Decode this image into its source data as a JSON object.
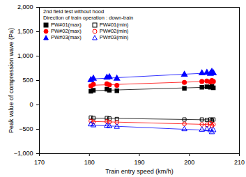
{
  "chart_data": {
    "type": "scatter",
    "title": "2nd field test without hood",
    "subtitle": "Direction of train operation : down-train",
    "x_label": "Train entry speed (km/h)",
    "y_label": "Peak value of compression wave (Pa)",
    "x": [
      180.3,
      180.8,
      183.5,
      184.0,
      185.5,
      199.0,
      202.5,
      203.5,
      204.2,
      204.5,
      204.8
    ],
    "series": [
      {
        "name": "PW#01(max)",
        "color": "#000000",
        "marker": "square",
        "values": [
          280,
          300,
          320,
          300,
          290,
          340,
          360,
          370,
          360,
          380,
          350
        ]
      },
      {
        "name": "PW#01(min)",
        "color": "#000000",
        "marker": "square-open",
        "values": [
          -260,
          -270,
          -270,
          -280,
          -290,
          -300,
          -300,
          -310,
          -300,
          -320,
          -300
        ]
      },
      {
        "name": "PW#02(max)",
        "color": "#ff0000",
        "marker": "circle",
        "values": [
          390,
          420,
          430,
          410,
          400,
          460,
          480,
          490,
          470,
          500,
          480
        ]
      },
      {
        "name": "PW#02(min)",
        "color": "#ff0000",
        "marker": "circle-open",
        "values": [
          -330,
          -350,
          -340,
          -350,
          -360,
          -390,
          -400,
          -410,
          -380,
          -420,
          -400
        ]
      },
      {
        "name": "PW#03(max)",
        "color": "#0000ff",
        "marker": "triangle",
        "values": [
          510,
          540,
          560,
          570,
          540,
          620,
          650,
          660,
          640,
          680,
          650
        ]
      },
      {
        "name": "PW#03(min)",
        "color": "#0000ff",
        "marker": "triangle-open",
        "values": [
          -400,
          -420,
          -430,
          -440,
          -450,
          -500,
          -510,
          -500,
          -520,
          -560,
          -520
        ]
      }
    ],
    "xlim": [
      170,
      210
    ],
    "xticks": [
      170,
      180,
      190,
      200,
      210
    ],
    "ylim": [
      -1000,
      2000
    ],
    "yticks": [
      -1000,
      -500,
      0,
      500,
      1000,
      1500,
      2000
    ],
    "grid": false,
    "legend": "top-left"
  }
}
